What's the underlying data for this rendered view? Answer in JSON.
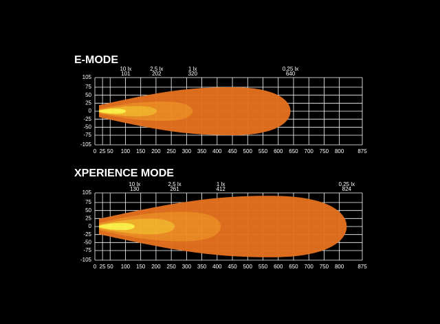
{
  "chart_data": [
    {
      "type": "beam",
      "title": "E-MODE",
      "xlim": [
        0,
        875
      ],
      "xticks": [
        0,
        25,
        50,
        100,
        150,
        200,
        250,
        300,
        350,
        400,
        450,
        500,
        550,
        600,
        650,
        700,
        750,
        800,
        875
      ],
      "ylim": [
        -105,
        105
      ],
      "yticks": [
        105,
        75,
        50,
        25,
        0,
        -25,
        -50,
        -75,
        -105
      ],
      "grid": true,
      "zones": [
        {
          "name": "0,25 lx",
          "distance": 640,
          "halfwidth": 75,
          "color": "#e3701e"
        },
        {
          "name": "1 lx",
          "distance": 320,
          "halfwidth": 30,
          "color": "#ef8c26"
        },
        {
          "name": "2,5 lx",
          "distance": 202,
          "halfwidth": 16,
          "color": "#f6b42e"
        },
        {
          "name": "10 lx",
          "distance": 101,
          "halfwidth": 8,
          "color": "#fff34a"
        }
      ]
    },
    {
      "type": "beam",
      "title": "XPERIENCE MODE",
      "xlim": [
        0,
        875
      ],
      "xticks": [
        0,
        25,
        50,
        100,
        150,
        200,
        250,
        300,
        350,
        400,
        450,
        500,
        550,
        600,
        650,
        700,
        750,
        800,
        875
      ],
      "ylim": [
        -105,
        105
      ],
      "yticks": [
        105,
        75,
        50,
        25,
        0,
        -25,
        -50,
        -75,
        -105
      ],
      "grid": true,
      "zones": [
        {
          "name": "0,25 lx",
          "distance": 824,
          "halfwidth": 96,
          "color": "#e3701e"
        },
        {
          "name": "1 lx",
          "distance": 412,
          "halfwidth": 46,
          "color": "#ef8c26"
        },
        {
          "name": "2,5 lx",
          "distance": 261,
          "halfwidth": 24,
          "color": "#f6b42e"
        },
        {
          "name": "10 lx",
          "distance": 130,
          "halfwidth": 11,
          "color": "#fff34a"
        }
      ]
    }
  ]
}
